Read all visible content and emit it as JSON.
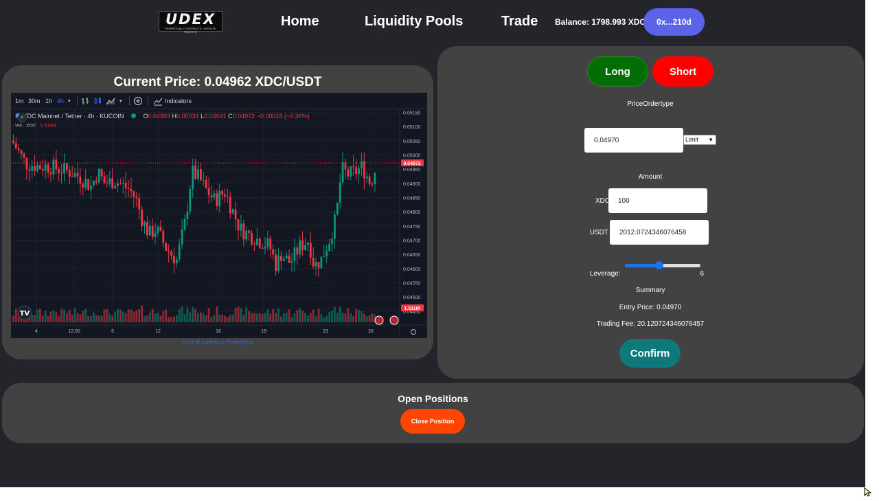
{
  "header": {
    "logo_text": "UDEX",
    "logo_tagline": "PERPETUAL CONTRACTS. INFINITE PROFITS",
    "nav": [
      "Home",
      "Liquidity Pools",
      "Trade"
    ],
    "balance": "Balance: 1798.993 XDC",
    "wallet": "0x...210d"
  },
  "price_panel": {
    "title": "Current Price: 0.04962 XDC/USDT",
    "tv_link": "Track all markets on TradingView"
  },
  "chart_widget": {
    "timeframes": [
      "1m",
      "30m",
      "1h",
      "4h"
    ],
    "active_timeframe": "4h",
    "indicators_label": "Indicators",
    "symbol": "XDC Mainnet / Tether · 4h · KUCOIN",
    "ohlc": {
      "o_label": "O",
      "o": "0.04993",
      "h_label": "H",
      "h": "0.05034",
      "l_label": "L",
      "l": "0.04941",
      "c_label": "C",
      "c": "0.04972",
      "change": "−0.00018 (−0.36%)"
    },
    "volume_label": "Vol · XDC",
    "volume_value": "1.511M",
    "price_badge": "0.04972",
    "volume_badge": "1.511M"
  },
  "chart_data": {
    "type": "candlestick",
    "y_ticks": [
      "0.05150",
      "0.05100",
      "0.05050",
      "0.05000",
      "0.04950",
      "0.04900",
      "0.04850",
      "0.04800",
      "0.04750",
      "0.04700",
      "0.04650",
      "0.04600",
      "0.04550",
      "0.04500",
      "0.04450"
    ],
    "ylim": [
      0.0444,
      0.0518
    ],
    "x_ticks": [
      "4",
      "12:00",
      "9",
      "12",
      "16",
      "19",
      "23",
      "26"
    ],
    "last_price": 0.04972,
    "colors": {
      "up": "#089981",
      "down": "#f23645",
      "background": "#131722"
    }
  },
  "order_panel": {
    "long": "Long",
    "short": "Short",
    "price_order_label": "PriceOrdertype",
    "price_value": "0.04970",
    "order_type": "Limit",
    "amount_label": "Amount",
    "xdc_label": "XDC",
    "xdc_value": "100",
    "usdt_label": "USDT",
    "usdt_value": "2012.0724346076458",
    "leverage_label": "Leverage:",
    "leverage_value": "6",
    "leverage_fraction": 0.45,
    "summary_label": "Summary",
    "entry_price": "Entry Price: 0.04970",
    "trading_fee": "Trading Fee: 20.120724346076457",
    "confirm": "Confirm"
  },
  "positions": {
    "title": "Open Positions",
    "close_button": "Close Position"
  }
}
